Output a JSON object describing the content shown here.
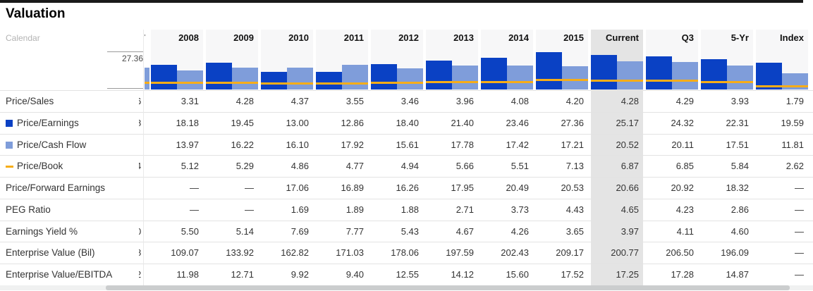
{
  "title": "Valuation",
  "calendar_label": "Calendar",
  "axis": {
    "max_label": "27.36"
  },
  "table": {
    "columns": [
      "2008",
      "2009",
      "2010",
      "2011",
      "2012",
      "2013",
      "2014",
      "2015",
      "Current",
      "Q3",
      "5-Yr",
      "Index"
    ],
    "highlight_column": "Current",
    "rows": [
      {
        "label": "Price/Sales",
        "marker": "none",
        "values": [
          "3.31",
          "4.28",
          "4.37",
          "3.55",
          "3.46",
          "3.96",
          "4.08",
          "4.20",
          "4.28",
          "4.29",
          "3.93",
          "1.79"
        ]
      },
      {
        "label": "Price/Earnings",
        "marker": "dark-blue-square",
        "values": [
          "18.18",
          "19.45",
          "13.00",
          "12.86",
          "18.40",
          "21.40",
          "23.46",
          "27.36",
          "25.17",
          "24.32",
          "22.31",
          "19.59"
        ]
      },
      {
        "label": "Price/Cash Flow",
        "marker": "light-blue-square",
        "values": [
          "13.97",
          "16.22",
          "16.10",
          "17.92",
          "15.61",
          "17.78",
          "17.42",
          "17.21",
          "20.52",
          "20.11",
          "17.51",
          "11.81"
        ]
      },
      {
        "label": "Price/Book",
        "marker": "yellow-dash",
        "values": [
          "5.12",
          "5.29",
          "4.86",
          "4.77",
          "4.94",
          "5.66",
          "5.51",
          "7.13",
          "6.87",
          "6.85",
          "5.84",
          "2.62"
        ]
      },
      {
        "label": "Price/Forward Earnings",
        "marker": "none",
        "values": [
          "—",
          "—",
          "17.06",
          "16.89",
          "16.26",
          "17.95",
          "20.49",
          "20.53",
          "20.66",
          "20.92",
          "18.32",
          "—"
        ]
      },
      {
        "label": "PEG Ratio",
        "marker": "none",
        "values": [
          "—",
          "—",
          "1.69",
          "1.89",
          "1.88",
          "2.71",
          "3.73",
          "4.43",
          "4.65",
          "4.23",
          "2.86",
          "—"
        ]
      },
      {
        "label": "Earnings Yield %",
        "marker": "none",
        "values": [
          "5.50",
          "5.14",
          "7.69",
          "7.77",
          "5.43",
          "4.67",
          "4.26",
          "3.65",
          "3.97",
          "4.11",
          "4.60",
          "—"
        ]
      },
      {
        "label": "Enterprise Value (Bil)",
        "marker": "none",
        "values": [
          "109.07",
          "133.92",
          "162.82",
          "171.03",
          "178.06",
          "197.59",
          "202.43",
          "209.17",
          "200.77",
          "206.50",
          "196.09",
          "—"
        ]
      },
      {
        "label": "Enterprise Value/EBITDA",
        "marker": "none",
        "values": [
          "11.98",
          "12.71",
          "9.92",
          "9.40",
          "12.55",
          "14.12",
          "15.60",
          "17.52",
          "17.25",
          "17.28",
          "14.87",
          "—"
        ]
      }
    ]
  },
  "clipped_column": {
    "header_fragment": "7",
    "row_fragments": [
      "6",
      "8",
      "",
      "4",
      "",
      "",
      "0",
      "8",
      "2"
    ],
    "cash_flow_bar_value": 16.1,
    "book_line_value": 5.1
  },
  "chart_data": {
    "type": "bar",
    "categories": [
      "2008",
      "2009",
      "2010",
      "2011",
      "2012",
      "2013",
      "2014",
      "2015",
      "Current",
      "Q3",
      "5-Yr",
      "Index"
    ],
    "series": [
      {
        "name": "Price/Earnings",
        "type": "bar",
        "color": "#0a41c4",
        "values": [
          18.18,
          19.45,
          13.0,
          12.86,
          18.4,
          21.4,
          23.46,
          27.36,
          25.17,
          24.32,
          22.31,
          19.59
        ]
      },
      {
        "name": "Price/Cash Flow",
        "type": "bar",
        "color": "#7f9dda",
        "values": [
          13.97,
          16.22,
          16.1,
          17.92,
          15.61,
          17.78,
          17.42,
          17.21,
          20.52,
          20.11,
          17.51,
          11.81
        ]
      },
      {
        "name": "Price/Book",
        "type": "line",
        "color": "#f7ad18",
        "values": [
          5.12,
          5.29,
          4.86,
          4.77,
          4.94,
          5.66,
          5.51,
          7.13,
          6.87,
          6.85,
          5.84,
          2.62
        ]
      }
    ],
    "title": "Valuation",
    "xlabel": "Calendar",
    "ylabel": "",
    "ylim": [
      0,
      27.36
    ],
    "grid": false,
    "legend_position": "left-row-labels",
    "axis_max_label": "27.36",
    "highlight_category": "Current"
  },
  "colors": {
    "dark_blue": "#0a41c4",
    "light_blue": "#7f9dda",
    "amber": "#f7ad18",
    "current_column_bg": "#e4e4e4",
    "column_bg": "#f7f7f8",
    "row_border": "#e3e3e3",
    "text": "#333333",
    "muted_text": "#b3b3b3",
    "top_bar": "#1a1a1a"
  }
}
